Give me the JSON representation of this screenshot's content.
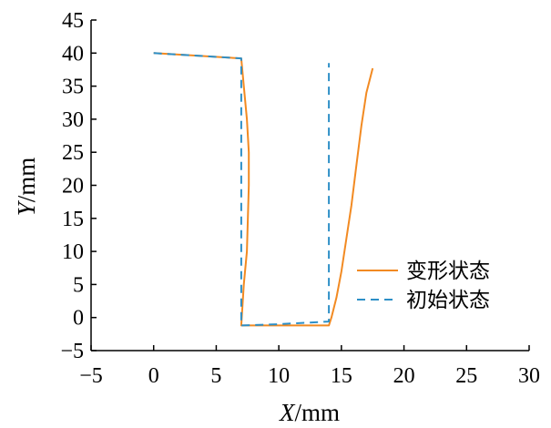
{
  "chart_data": {
    "type": "line",
    "xlabel": {
      "var": "X",
      "unit": "/mm"
    },
    "ylabel": {
      "var": "Y",
      "unit": "/mm"
    },
    "xlim": [
      -5,
      30
    ],
    "ylim": [
      -5,
      45
    ],
    "xticks": [
      -5,
      0,
      5,
      10,
      15,
      20,
      25,
      30
    ],
    "yticks": [
      -5,
      0,
      5,
      10,
      15,
      20,
      25,
      30,
      35,
      40,
      45
    ],
    "xtick_labels": [
      "−5",
      "0",
      "5",
      "10",
      "15",
      "20",
      "25",
      "30"
    ],
    "ytick_labels": [
      "−5",
      "0",
      "5",
      "10",
      "15",
      "20",
      "25",
      "30",
      "35",
      "40",
      "45"
    ],
    "grid": false,
    "legend_position": "right",
    "series": [
      {
        "name": "变形状态",
        "color": "#f28a22",
        "dash": "solid",
        "x": [
          0,
          7.0,
          7.2,
          7.45,
          7.6,
          7.6,
          7.45,
          7.2,
          7.0,
          10,
          14,
          14.2,
          14.6,
          15.0,
          15.4,
          15.8,
          16.2,
          16.6,
          17.0,
          17.5
        ],
        "y": [
          40,
          39.2,
          35,
          30,
          25,
          20,
          10,
          5,
          -1.2,
          -1.2,
          -1.2,
          0,
          3,
          7,
          12,
          17,
          23,
          29,
          34,
          37.7
        ]
      },
      {
        "name": "初始状态",
        "color": "#2d8fc7",
        "dash": "dashed",
        "x": [
          0,
          7,
          7,
          10,
          14,
          14,
          14
        ],
        "y": [
          40,
          39.2,
          -1.2,
          -1.0,
          -0.6,
          -0.6,
          38.5
        ]
      }
    ]
  }
}
